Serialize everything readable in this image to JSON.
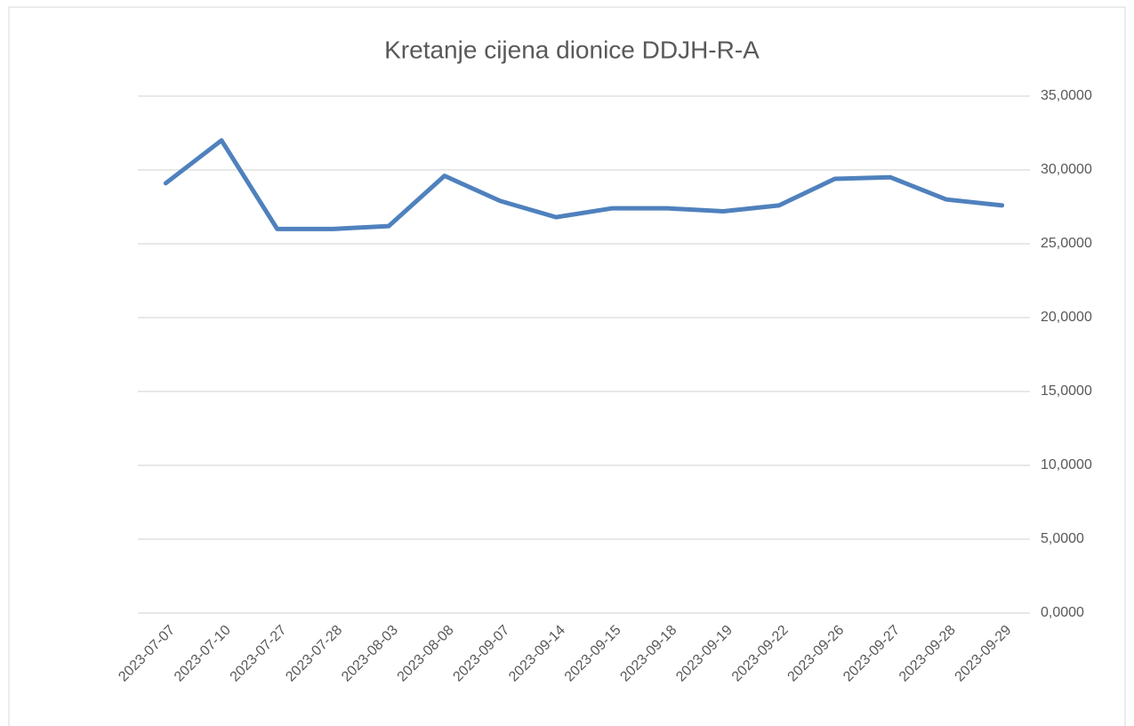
{
  "chart_data": {
    "type": "line",
    "title": "Kretanje cijena dionice DDJH-R-A",
    "categories": [
      "2023-07-07",
      "2023-07-10",
      "2023-07-27",
      "2023-07-28",
      "2023-08-03",
      "2023-08-08",
      "2023-09-07",
      "2023-09-14",
      "2023-09-15",
      "2023-09-18",
      "2023-09-19",
      "2023-09-22",
      "2023-09-26",
      "2023-09-27",
      "2023-09-28",
      "2023-09-29"
    ],
    "series": [
      {
        "color": "#4f81bd",
        "values": [
          29.1,
          32.0,
          26.0,
          26.0,
          26.2,
          29.6,
          27.9,
          26.8,
          27.4,
          27.4,
          27.2,
          27.6,
          29.4,
          29.5,
          28.0,
          27.6
        ]
      }
    ],
    "ylim": [
      0,
      35
    ],
    "yticks": [
      {
        "value": 0,
        "label": "0,0000"
      },
      {
        "value": 5,
        "label": "5,0000"
      },
      {
        "value": 10,
        "label": "10,0000"
      },
      {
        "value": 15,
        "label": "15,0000"
      },
      {
        "value": 20,
        "label": "20,0000"
      },
      {
        "value": 25,
        "label": "25,0000"
      },
      {
        "value": 30,
        "label": "30,0000"
      },
      {
        "value": 35,
        "label": "35,0000"
      }
    ],
    "grid": true
  }
}
